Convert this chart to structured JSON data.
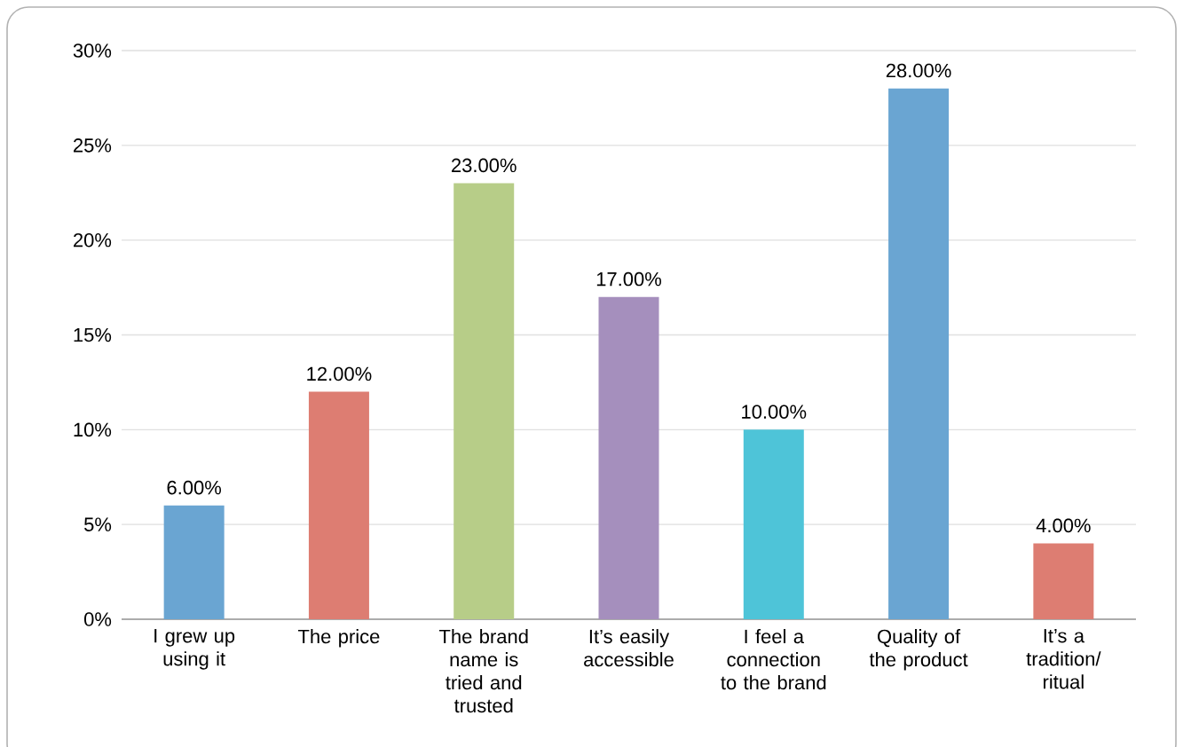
{
  "chart_data": {
    "type": "bar",
    "categories": [
      "I grew up using it",
      "The price",
      "The brand name is tried and trusted",
      "It’s easily accessible",
      "I feel a connection to the brand",
      "Quality of the product",
      "It’s a tradition/ ritual"
    ],
    "values": [
      6,
      12,
      23,
      17,
      10,
      28,
      4
    ],
    "colors": [
      "#6aa5d2",
      "#dd7d72",
      "#b7cd88",
      "#a58fbd",
      "#4ec4d8",
      "#6aa5d2",
      "#dd7d72"
    ],
    "value_labels": [
      "6.00%",
      "12.00%",
      "23.00%",
      "17.00%",
      "10.00%",
      "28.00%",
      "4.00%"
    ],
    "ylim": [
      0,
      30
    ],
    "yticks": [
      {
        "value": 0,
        "label": "0%"
      },
      {
        "value": 5,
        "label": "5%"
      },
      {
        "value": 10,
        "label": "10%"
      },
      {
        "value": 15,
        "label": "15%"
      },
      {
        "value": 20,
        "label": "20%"
      },
      {
        "value": 25,
        "label": "25%"
      },
      {
        "value": 30,
        "label": "30%"
      }
    ],
    "grid": "y"
  }
}
